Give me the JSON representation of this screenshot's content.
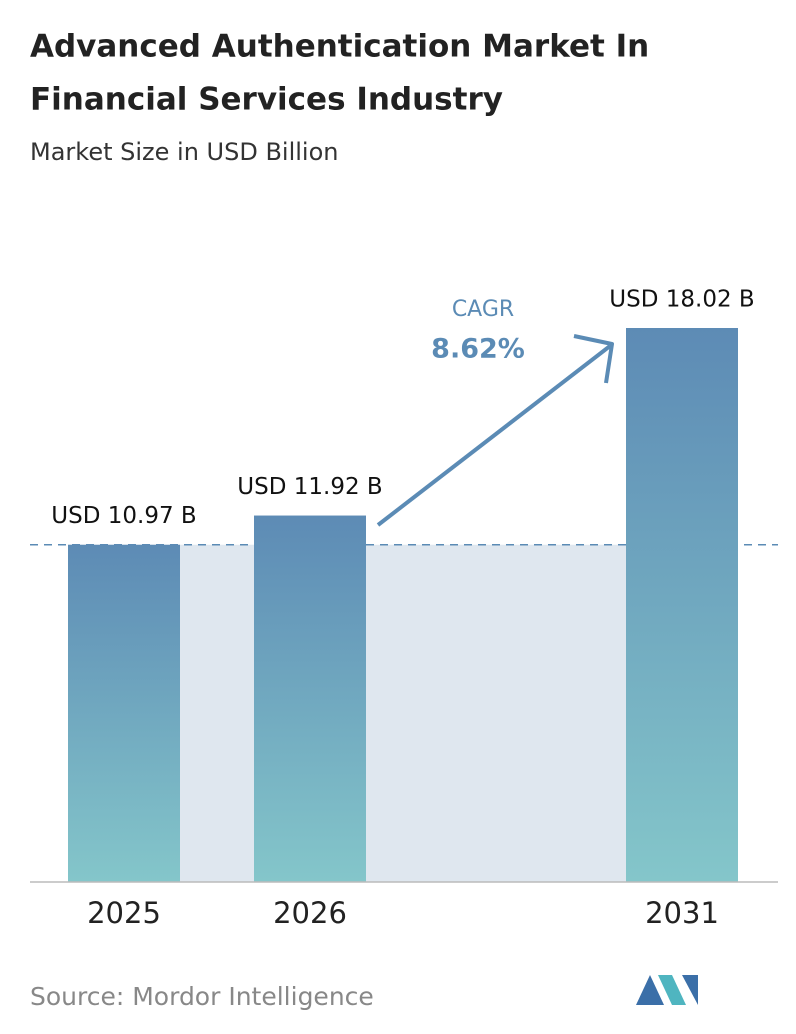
{
  "chart_data": {
    "type": "bar",
    "title": [
      "Advanced Authentication Market In",
      "Financial Services Industry"
    ],
    "subtitle": "Market Size in USD Billion",
    "categories": [
      "2025",
      "2026",
      "2031"
    ],
    "values": [
      10.97,
      11.92,
      18.02
    ],
    "value_labels": [
      "USD 10.97 B",
      "USD 11.92 B",
      "USD 18.02 B"
    ],
    "annotations": [
      "CAGR",
      "8.62%"
    ],
    "source": "Source: Mordor Intelligence",
    "colors": [
      "#5d8bb5",
      "#84c6ca"
    ]
  }
}
